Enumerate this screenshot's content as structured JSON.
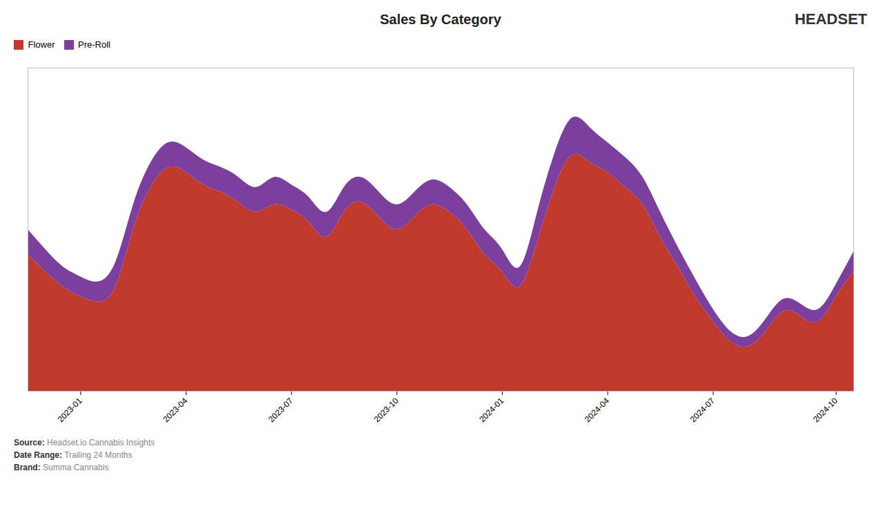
{
  "chart_data": {
    "type": "area",
    "title": "Sales By Category",
    "x": [
      0,
      1,
      2,
      3,
      4,
      5,
      6,
      7,
      8,
      9,
      10,
      11,
      12,
      13,
      14,
      15,
      16,
      17,
      18,
      19,
      20,
      21,
      22,
      23,
      24,
      25,
      26,
      27,
      28,
      29,
      30,
      31,
      32,
      33,
      34,
      35,
      36,
      37,
      38,
      39,
      40,
      41,
      42,
      43,
      44,
      45,
      46,
      47
    ],
    "series": [
      {
        "name": "Flower",
        "color": "#c0392b",
        "values": [
          55,
          48,
          42,
          38,
          36,
          42,
          65,
          82,
          90,
          88,
          83,
          80,
          76,
          72,
          75,
          73,
          68,
          62,
          72,
          76,
          70,
          65,
          70,
          75,
          72,
          65,
          55,
          48,
          42,
          60,
          82,
          95,
          92,
          88,
          82,
          75,
          62,
          50,
          38,
          28,
          20,
          18,
          24,
          32,
          30,
          28,
          38,
          48
        ]
      },
      {
        "name": "Pre-Roll",
        "color": "#7b3f9e",
        "values": [
          65,
          57,
          50,
          46,
          44,
          52,
          75,
          92,
          100,
          98,
          93,
          90,
          86,
          82,
          86,
          83,
          78,
          72,
          82,
          86,
          80,
          75,
          80,
          85,
          82,
          75,
          65,
          57,
          50,
          72,
          96,
          110,
          106,
          100,
          94,
          86,
          72,
          58,
          45,
          33,
          24,
          22,
          29,
          37,
          35,
          33,
          43,
          56
        ]
      }
    ],
    "xlim": [
      0,
      47
    ],
    "xticks": [
      {
        "value": 3,
        "label": "2023-01"
      },
      {
        "value": 9,
        "label": "2023-04"
      },
      {
        "value": 15,
        "label": "2023-07"
      },
      {
        "value": 21,
        "label": "2023-10"
      },
      {
        "value": 27,
        "label": "2024-01"
      },
      {
        "value": 33,
        "label": "2024-04"
      },
      {
        "value": 39,
        "label": "2024-07"
      },
      {
        "value": 46,
        "label": "2024-10"
      }
    ],
    "ylim": [
      0,
      130
    ],
    "tick_labels": "x",
    "grid": false,
    "legend": "upper left",
    "annotations": [
      "HEADSET",
      "Source:",
      "Headset.io Cannabis Insights",
      "Date Range:",
      "Trailing 24 Months",
      "Brand:",
      "Summa Cannabis"
    ]
  }
}
